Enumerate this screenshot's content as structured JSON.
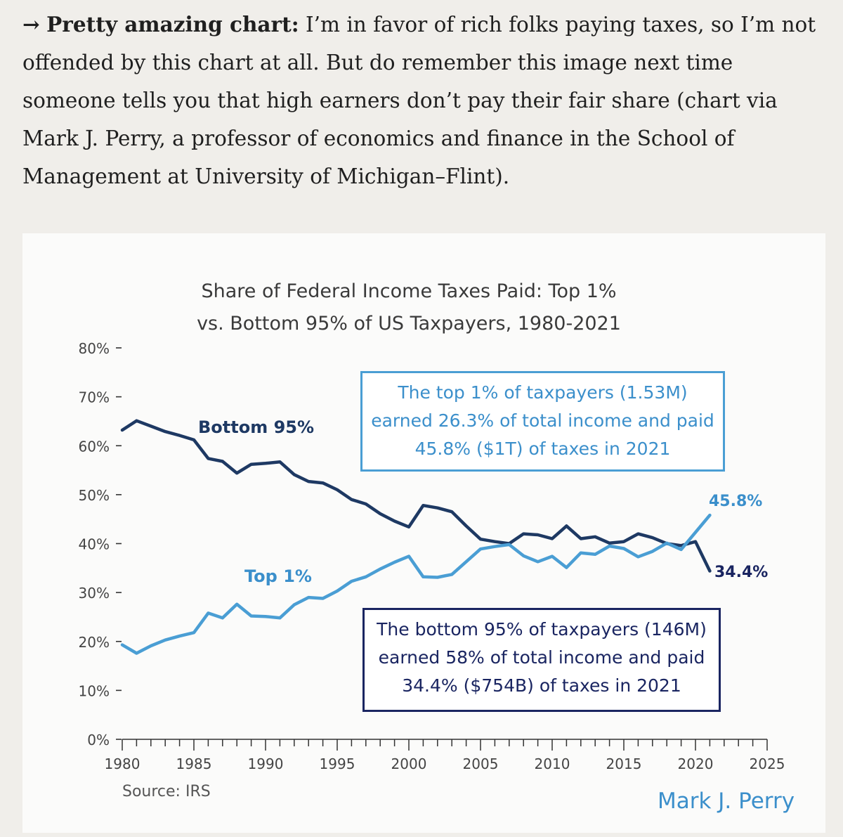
{
  "article": {
    "arrow": "→",
    "lead": "Pretty amazing chart:",
    "body": " I’m in favor of rich folks paying taxes, so I’m not offended by this chart at all. But do remember this image next time someone tells you that high earners don’t pay their fair share (chart via Mark J. Perry, a professor of economics and finance in the School of Management at University of Michigan–Flint)."
  },
  "colors": {
    "bottom95": "#1e3963",
    "top1": "#4a9ed4",
    "navy_text": "#1a2561",
    "blue_text": "#3b8fcb",
    "axis": "#333333"
  },
  "chart_data": {
    "type": "line",
    "title_line1": "Share of Federal Income Taxes Paid: Top 1%",
    "title_line2": "vs. Bottom 95% of US Taxpayers, 1980-2021",
    "xlabel": "",
    "ylabel": "",
    "xlim": [
      1980,
      2025
    ],
    "ylim": [
      0,
      80
    ],
    "x_ticks": [
      "1980",
      "1985",
      "1990",
      "1995",
      "2000",
      "2005",
      "2010",
      "2015",
      "2020",
      "2025"
    ],
    "y_ticks": [
      "0%",
      "10%",
      "20%",
      "30%",
      "40%",
      "50%",
      "60%",
      "70%",
      "80%"
    ],
    "x": [
      1980,
      1981,
      1982,
      1983,
      1984,
      1985,
      1986,
      1987,
      1988,
      1989,
      1990,
      1991,
      1992,
      1993,
      1994,
      1995,
      1996,
      1997,
      1998,
      1999,
      2000,
      2001,
      2002,
      2003,
      2004,
      2005,
      2006,
      2007,
      2008,
      2009,
      2010,
      2011,
      2012,
      2013,
      2014,
      2015,
      2016,
      2017,
      2018,
      2019,
      2020,
      2021
    ],
    "series": [
      {
        "name": "Bottom 95%",
        "values": [
          63.2,
          65.1,
          64.0,
          62.9,
          62.1,
          61.2,
          57.4,
          56.8,
          54.4,
          56.2,
          56.4,
          56.7,
          54.1,
          52.7,
          52.4,
          51.0,
          49.0,
          48.1,
          46.1,
          44.6,
          43.4,
          47.8,
          47.3,
          46.5,
          43.6,
          40.9,
          40.4,
          40.0,
          42.0,
          41.8,
          41.0,
          43.6,
          41.0,
          41.4,
          40.1,
          40.4,
          42.0,
          41.2,
          40.0,
          39.6,
          40.4,
          34.4
        ]
      },
      {
        "name": "Top 1%",
        "values": [
          19.3,
          17.6,
          19.1,
          20.3,
          21.1,
          21.8,
          25.8,
          24.8,
          27.6,
          25.2,
          25.1,
          24.8,
          27.5,
          29.0,
          28.8,
          30.3,
          32.3,
          33.2,
          34.8,
          36.2,
          37.4,
          33.2,
          33.1,
          33.7,
          36.3,
          38.9,
          39.4,
          39.8,
          37.5,
          36.3,
          37.4,
          35.1,
          38.1,
          37.8,
          39.5,
          39.0,
          37.3,
          38.4,
          40.1,
          38.8,
          42.3,
          45.8
        ]
      }
    ],
    "series_labels": {
      "bottom95": "Bottom 95%",
      "top1": "Top 1%"
    },
    "end_labels": {
      "top1": "45.8%",
      "bottom95": "34.4%"
    },
    "annotations": {
      "top1": [
        "The top 1% of taxpayers (1.53M)",
        "earned 26.3% of total income and paid",
        "45.8% ($1T) of taxes in 2021"
      ],
      "bottom95": [
        "The bottom 95% of taxpayers (146M)",
        "earned 58% of total income and paid",
        "34.4% ($754B) of taxes in 2021"
      ]
    },
    "source": "Source: IRS",
    "credit": "Mark J. Perry"
  }
}
